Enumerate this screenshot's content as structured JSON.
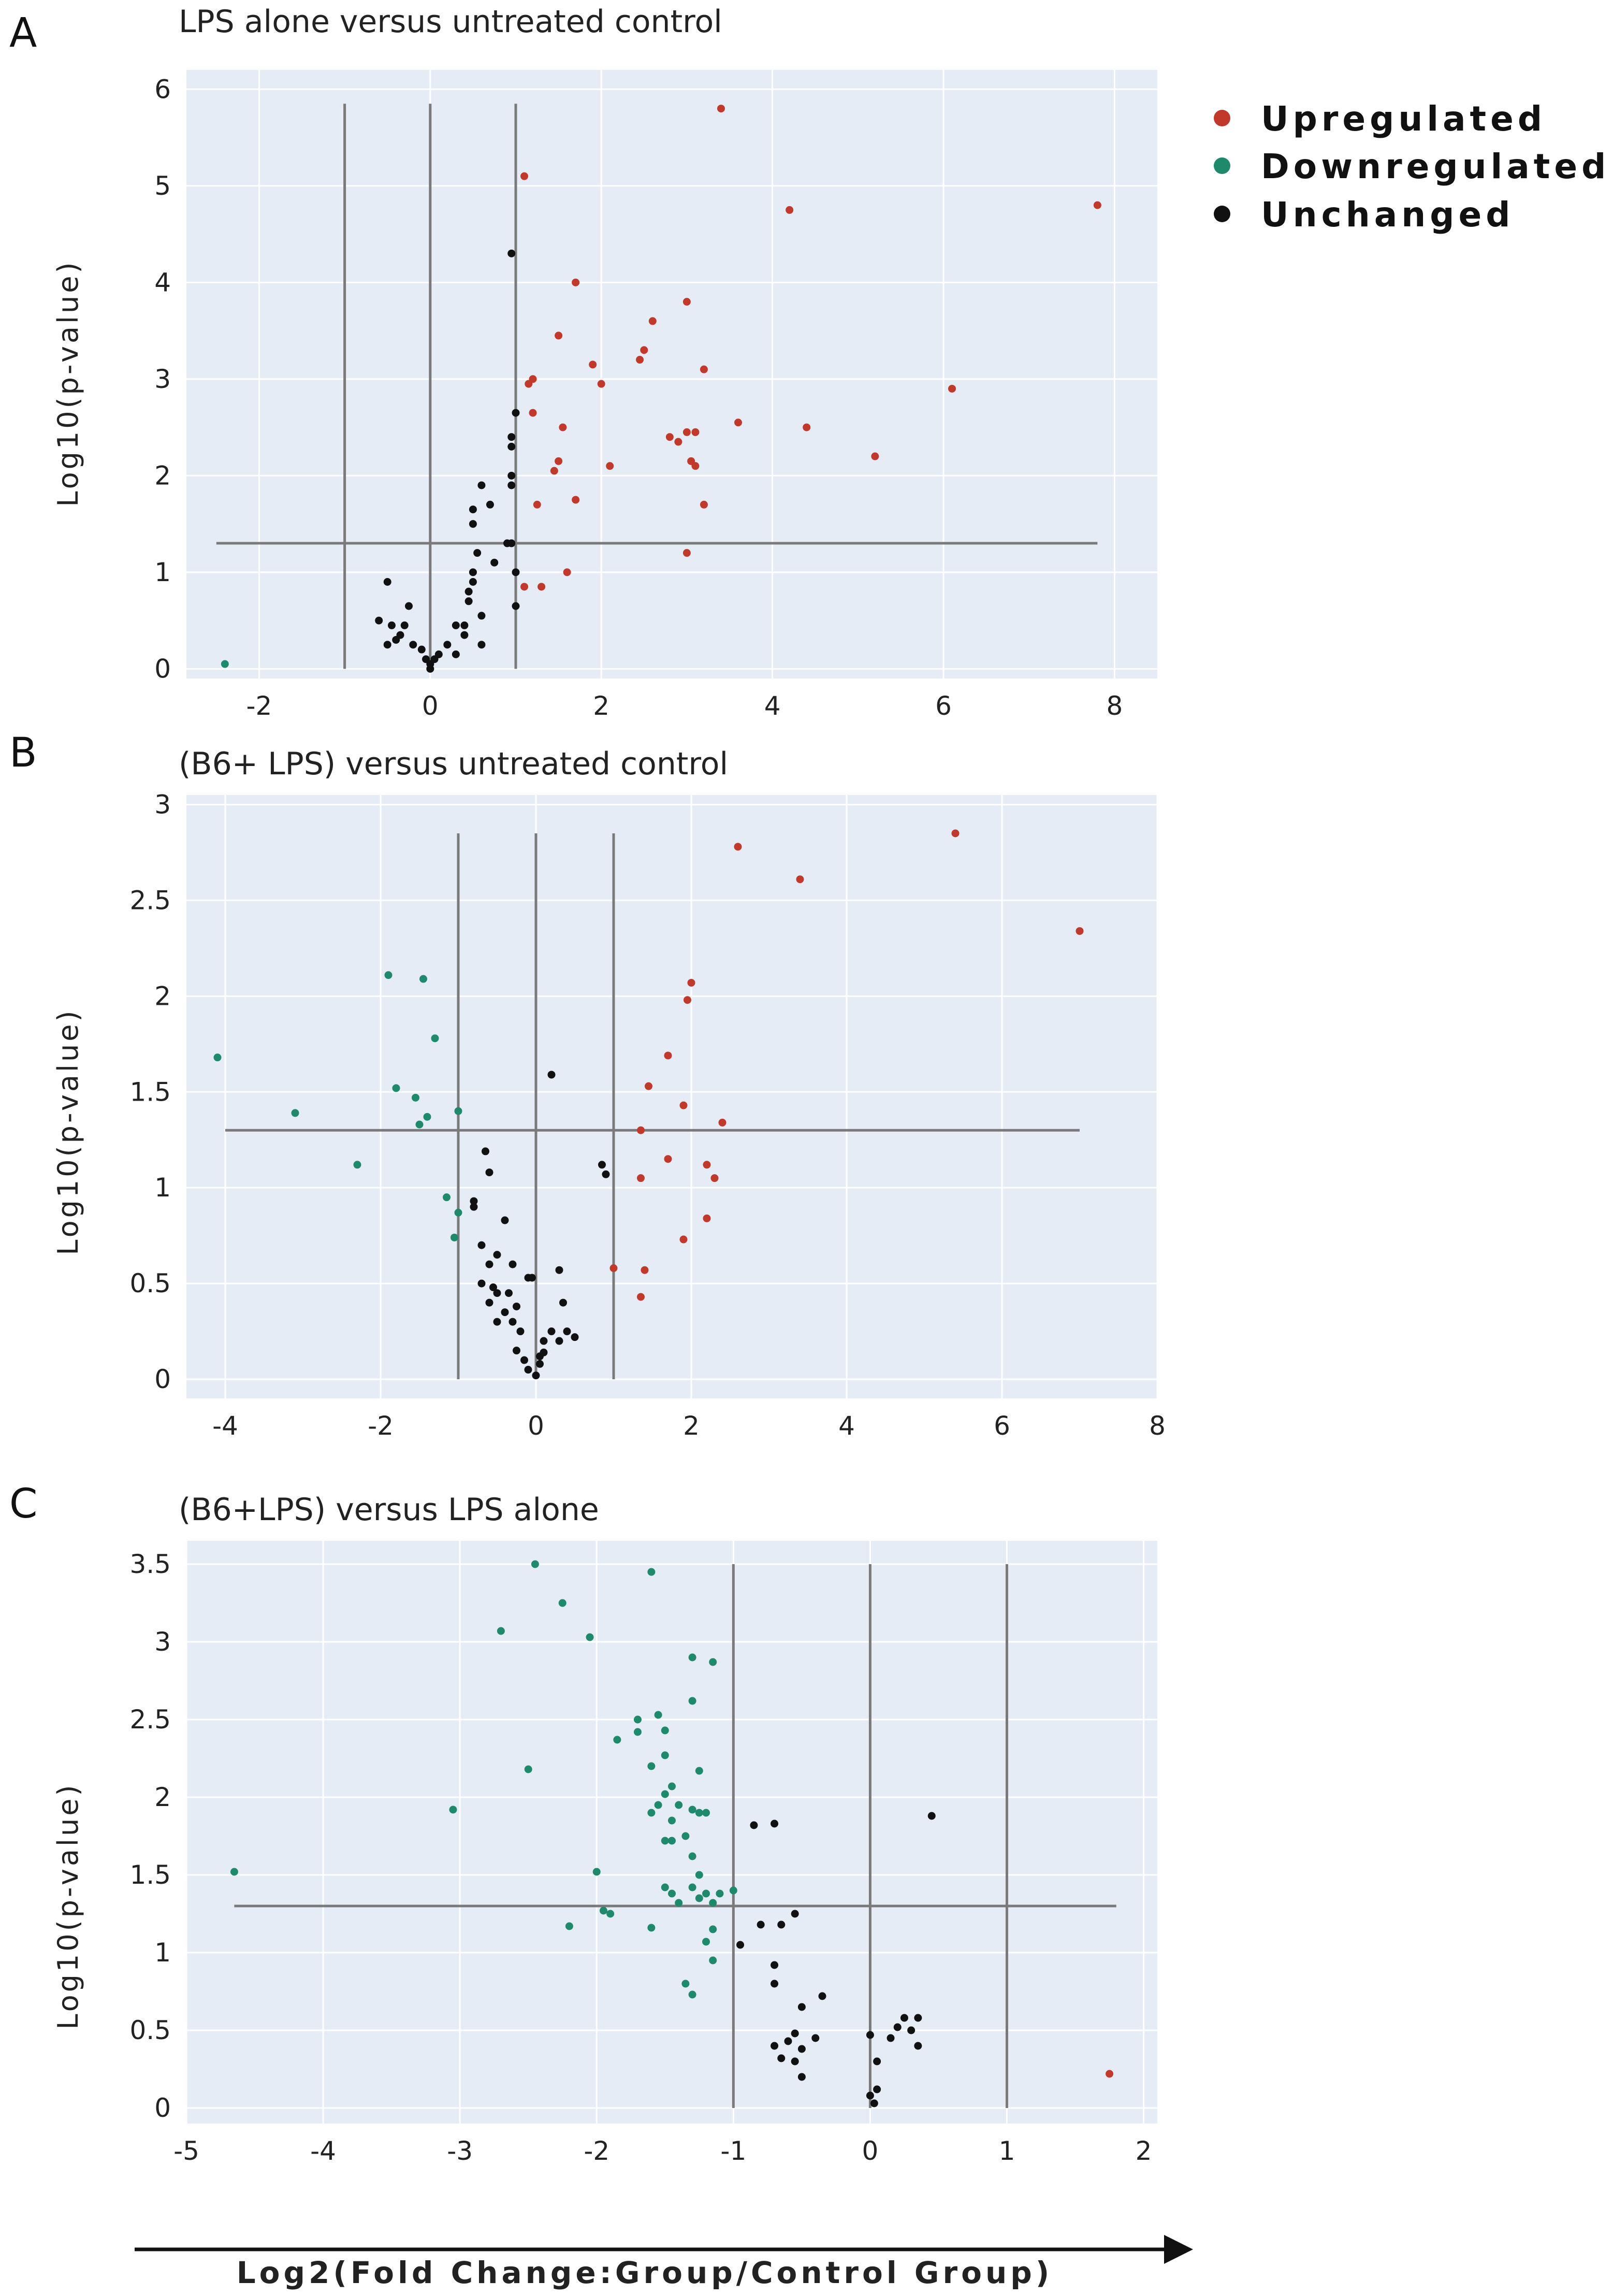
{
  "chart_data": [
    {
      "type": "scatter",
      "panel_label": "A",
      "title": "LPS alone versus untreated control",
      "ylabel": "Log10(p-value)",
      "xlabel": "",
      "xlim": [
        -2.85,
        8.5
      ],
      "ylim": [
        -0.1,
        6.2
      ],
      "xticks": [
        -2,
        0,
        2,
        4,
        6,
        8
      ],
      "yticks": [
        0,
        1,
        2,
        3,
        4,
        5,
        6
      ],
      "thresholds": {
        "vertical": [
          -1,
          0,
          1
        ],
        "horizontal": 1.3,
        "v_range": [
          0,
          5.85
        ],
        "h_range": [
          -2.5,
          7.8
        ]
      },
      "series": [
        {
          "name": "Upregulated",
          "color": "#c0392b",
          "points": [
            [
              3.4,
              5.8
            ],
            [
              7.8,
              4.8
            ],
            [
              4.2,
              4.75
            ],
            [
              1.1,
              5.1
            ],
            [
              1.7,
              4.0
            ],
            [
              3.0,
              3.8
            ],
            [
              2.6,
              3.6
            ],
            [
              1.5,
              3.45
            ],
            [
              2.5,
              3.3
            ],
            [
              3.2,
              3.1
            ],
            [
              2.45,
              3.2
            ],
            [
              1.9,
              3.15
            ],
            [
              1.2,
              3.0
            ],
            [
              1.15,
              2.95
            ],
            [
              2.0,
              2.95
            ],
            [
              6.1,
              2.9
            ],
            [
              1.2,
              2.65
            ],
            [
              3.6,
              2.55
            ],
            [
              4.4,
              2.5
            ],
            [
              1.55,
              2.5
            ],
            [
              3.0,
              2.45
            ],
            [
              3.1,
              2.45
            ],
            [
              2.8,
              2.4
            ],
            [
              2.9,
              2.35
            ],
            [
              5.2,
              2.2
            ],
            [
              1.5,
              2.15
            ],
            [
              2.1,
              2.1
            ],
            [
              3.05,
              2.15
            ],
            [
              3.1,
              2.1
            ],
            [
              1.45,
              2.05
            ],
            [
              1.25,
              1.7
            ],
            [
              1.7,
              1.75
            ],
            [
              3.2,
              1.7
            ],
            [
              1.1,
              0.85
            ],
            [
              1.3,
              0.85
            ],
            [
              1.6,
              1.0
            ],
            [
              3.0,
              1.2
            ]
          ]
        },
        {
          "name": "Downregulated",
          "color": "#1e8a6b",
          "points": [
            [
              -2.4,
              0.05
            ]
          ]
        },
        {
          "name": "Unchanged",
          "color": "#111111",
          "points": [
            [
              0.95,
              4.3
            ],
            [
              1.0,
              2.65
            ],
            [
              0.95,
              2.4
            ],
            [
              0.95,
              2.3
            ],
            [
              0.95,
              2.0
            ],
            [
              0.6,
              1.9
            ],
            [
              0.95,
              1.9
            ],
            [
              0.7,
              1.7
            ],
            [
              0.5,
              1.65
            ],
            [
              0.5,
              1.5
            ],
            [
              0.9,
              1.3
            ],
            [
              0.95,
              1.3
            ],
            [
              0.55,
              1.2
            ],
            [
              0.75,
              1.1
            ],
            [
              0.5,
              1.0
            ],
            [
              1.0,
              1.0
            ],
            [
              0.5,
              0.9
            ],
            [
              0.45,
              0.8
            ],
            [
              0.45,
              0.7
            ],
            [
              1.0,
              0.65
            ],
            [
              0.6,
              0.55
            ],
            [
              0.3,
              0.45
            ],
            [
              0.4,
              0.45
            ],
            [
              0.4,
              0.35
            ],
            [
              0.2,
              0.25
            ],
            [
              0.6,
              0.25
            ],
            [
              0.1,
              0.15
            ],
            [
              0.3,
              0.15
            ],
            [
              0.05,
              0.1
            ],
            [
              0.0,
              0.05
            ],
            [
              -0.5,
              0.9
            ],
            [
              -0.6,
              0.5
            ],
            [
              -0.45,
              0.45
            ],
            [
              -0.25,
              0.65
            ],
            [
              -0.3,
              0.45
            ],
            [
              -0.35,
              0.35
            ],
            [
              -0.4,
              0.3
            ],
            [
              -0.5,
              0.25
            ],
            [
              -0.2,
              0.25
            ],
            [
              -0.1,
              0.2
            ],
            [
              -0.05,
              0.1
            ],
            [
              0.0,
              0.0
            ]
          ]
        }
      ]
    },
    {
      "type": "scatter",
      "panel_label": "B",
      "title": "(B6+ LPS) versus untreated control",
      "ylabel": "Log10(p-value)",
      "xlabel": "",
      "xlim": [
        -4.5,
        8.0
      ],
      "ylim": [
        -0.1,
        3.05
      ],
      "xticks": [
        -4,
        -2,
        0,
        2,
        4,
        6,
        8
      ],
      "yticks": [
        0,
        0.5,
        1,
        1.5,
        2,
        2.5,
        3
      ],
      "tick_labels_y": [
        "0",
        "0.5",
        "1",
        "1.5",
        "2",
        "2.5",
        "3"
      ],
      "thresholds": {
        "vertical": [
          -1,
          0,
          1
        ],
        "horizontal": 1.3,
        "v_range": [
          0,
          2.85
        ],
        "h_range": [
          -4,
          7
        ]
      },
      "series": [
        {
          "name": "Upregulated",
          "color": "#c0392b",
          "points": [
            [
              5.4,
              2.85
            ],
            [
              2.6,
              2.78
            ],
            [
              3.4,
              2.61
            ],
            [
              7.0,
              2.34
            ],
            [
              2.0,
              2.07
            ],
            [
              1.95,
              1.98
            ],
            [
              1.7,
              1.69
            ],
            [
              1.45,
              1.53
            ],
            [
              1.9,
              1.43
            ],
            [
              2.4,
              1.34
            ],
            [
              1.35,
              1.3
            ],
            [
              1.7,
              1.15
            ],
            [
              2.2,
              1.12
            ],
            [
              2.3,
              1.05
            ],
            [
              1.35,
              1.05
            ],
            [
              2.2,
              0.84
            ],
            [
              1.9,
              0.73
            ],
            [
              1.0,
              0.58
            ],
            [
              1.4,
              0.57
            ],
            [
              1.35,
              0.43
            ]
          ]
        },
        {
          "name": "Downregulated",
          "color": "#1e8a6b",
          "points": [
            [
              -4.1,
              1.68
            ],
            [
              -1.9,
              2.11
            ],
            [
              -1.45,
              2.09
            ],
            [
              -1.3,
              1.78
            ],
            [
              -1.8,
              1.52
            ],
            [
              -1.55,
              1.47
            ],
            [
              -3.1,
              1.39
            ],
            [
              -1.4,
              1.37
            ],
            [
              -1.5,
              1.33
            ],
            [
              -1.0,
              1.4
            ],
            [
              -2.3,
              1.12
            ],
            [
              -1.15,
              0.95
            ],
            [
              -1.0,
              0.87
            ],
            [
              -1.05,
              0.74
            ]
          ]
        },
        {
          "name": "Unchanged",
          "color": "#111111",
          "points": [
            [
              0.2,
              1.59
            ],
            [
              -0.65,
              1.19
            ],
            [
              -0.6,
              1.08
            ],
            [
              0.85,
              1.12
            ],
            [
              0.9,
              1.07
            ],
            [
              -0.8,
              0.93
            ],
            [
              -0.8,
              0.9
            ],
            [
              -0.4,
              0.83
            ],
            [
              -0.7,
              0.7
            ],
            [
              -0.5,
              0.65
            ],
            [
              -0.6,
              0.6
            ],
            [
              -0.3,
              0.6
            ],
            [
              -0.7,
              0.5
            ],
            [
              -0.55,
              0.48
            ],
            [
              -0.5,
              0.45
            ],
            [
              -0.6,
              0.4
            ],
            [
              -0.35,
              0.45
            ],
            [
              -0.1,
              0.53
            ],
            [
              -0.05,
              0.53
            ],
            [
              -0.4,
              0.35
            ],
            [
              -0.25,
              0.38
            ],
            [
              -0.5,
              0.3
            ],
            [
              -0.3,
              0.3
            ],
            [
              -0.2,
              0.25
            ],
            [
              -0.25,
              0.15
            ],
            [
              -0.15,
              0.1
            ],
            [
              -0.1,
              0.05
            ],
            [
              0.05,
              0.08
            ],
            [
              0.05,
              0.12
            ],
            [
              0.1,
              0.14
            ],
            [
              0.0,
              0.02
            ],
            [
              0.1,
              0.2
            ],
            [
              0.2,
              0.25
            ],
            [
              0.3,
              0.2
            ],
            [
              0.4,
              0.25
            ],
            [
              0.35,
              0.4
            ],
            [
              0.3,
              0.57
            ],
            [
              0.5,
              0.22
            ]
          ]
        }
      ]
    },
    {
      "type": "scatter",
      "panel_label": "C",
      "title": "(B6+LPS) versus LPS alone",
      "ylabel": "Log10(p-value)",
      "xlabel": "Log2(Fold Change:Group/Control Group)",
      "xlim": [
        -5.0,
        2.1
      ],
      "ylim": [
        -0.1,
        3.65
      ],
      "xticks": [
        -5,
        -4,
        -3,
        -2,
        -1,
        0,
        1,
        2
      ],
      "yticks": [
        0,
        0.5,
        1,
        1.5,
        2,
        2.5,
        3,
        3.5
      ],
      "thresholds": {
        "vertical": [
          -1,
          0,
          1
        ],
        "horizontal": 1.3,
        "v_range": [
          0,
          3.5
        ],
        "h_range": [
          -4.65,
          1.8
        ]
      },
      "series": [
        {
          "name": "Upregulated",
          "color": "#c0392b",
          "points": [
            [
              1.75,
              0.22
            ]
          ]
        },
        {
          "name": "Downregulated",
          "color": "#1e8a6b",
          "points": [
            [
              -2.45,
              3.5
            ],
            [
              -1.6,
              3.45
            ],
            [
              -2.25,
              3.25
            ],
            [
              -2.7,
              3.07
            ],
            [
              -2.05,
              3.03
            ],
            [
              -1.3,
              2.9
            ],
            [
              -1.15,
              2.87
            ],
            [
              -1.3,
              2.62
            ],
            [
              -1.55,
              2.53
            ],
            [
              -1.7,
              2.5
            ],
            [
              -1.5,
              2.43
            ],
            [
              -1.7,
              2.42
            ],
            [
              -1.85,
              2.37
            ],
            [
              -1.5,
              2.27
            ],
            [
              -1.6,
              2.2
            ],
            [
              -2.5,
              2.18
            ],
            [
              -1.25,
              2.17
            ],
            [
              -1.45,
              2.07
            ],
            [
              -1.5,
              2.02
            ],
            [
              -1.55,
              1.95
            ],
            [
              -1.4,
              1.95
            ],
            [
              -1.3,
              1.92
            ],
            [
              -1.25,
              1.9
            ],
            [
              -1.2,
              1.9
            ],
            [
              -1.6,
              1.9
            ],
            [
              -3.05,
              1.92
            ],
            [
              -1.45,
              1.85
            ],
            [
              -1.35,
              1.75
            ],
            [
              -1.5,
              1.72
            ],
            [
              -1.45,
              1.72
            ],
            [
              -1.3,
              1.62
            ],
            [
              -1.25,
              1.5
            ],
            [
              -2.0,
              1.52
            ],
            [
              -4.65,
              1.52
            ],
            [
              -1.5,
              1.42
            ],
            [
              -1.45,
              1.38
            ],
            [
              -1.3,
              1.42
            ],
            [
              -1.2,
              1.38
            ],
            [
              -1.1,
              1.38
            ],
            [
              -1.25,
              1.35
            ],
            [
              -1.0,
              1.4
            ],
            [
              -1.15,
              1.32
            ],
            [
              -1.4,
              1.32
            ],
            [
              -1.9,
              1.25
            ],
            [
              -1.95,
              1.27
            ],
            [
              -2.2,
              1.17
            ],
            [
              -1.6,
              1.16
            ],
            [
              -1.15,
              1.15
            ],
            [
              -1.2,
              1.07
            ],
            [
              -1.15,
              0.95
            ],
            [
              -1.35,
              0.8
            ],
            [
              -1.3,
              0.73
            ]
          ]
        },
        {
          "name": "Unchanged",
          "color": "#111111",
          "points": [
            [
              0.45,
              1.88
            ],
            [
              -0.85,
              1.82
            ],
            [
              -0.7,
              1.83
            ],
            [
              -0.55,
              1.25
            ],
            [
              -0.65,
              1.18
            ],
            [
              -0.8,
              1.18
            ],
            [
              -0.95,
              1.05
            ],
            [
              -0.7,
              0.92
            ],
            [
              -0.7,
              0.8
            ],
            [
              -0.5,
              0.65
            ],
            [
              -0.35,
              0.72
            ],
            [
              -0.4,
              0.45
            ],
            [
              -0.55,
              0.48
            ],
            [
              -0.6,
              0.43
            ],
            [
              -0.7,
              0.4
            ],
            [
              -0.5,
              0.38
            ],
            [
              -0.55,
              0.3
            ],
            [
              -0.65,
              0.32
            ],
            [
              -0.5,
              0.2
            ],
            [
              0.25,
              0.58
            ],
            [
              0.35,
              0.58
            ],
            [
              0.3,
              0.5
            ],
            [
              0.2,
              0.52
            ],
            [
              0.15,
              0.45
            ],
            [
              0.35,
              0.4
            ],
            [
              0.0,
              0.47
            ],
            [
              0.05,
              0.3
            ],
            [
              0.05,
              0.12
            ],
            [
              0.0,
              0.08
            ],
            [
              0.03,
              0.03
            ]
          ]
        }
      ]
    }
  ],
  "legend": {
    "items": [
      {
        "label": "Upregulated",
        "color": "#c0392b"
      },
      {
        "label": "Downregulated",
        "color": "#1e8a6b"
      },
      {
        "label": "Unchanged",
        "color": "#111111"
      }
    ],
    "placement": "top-right"
  }
}
